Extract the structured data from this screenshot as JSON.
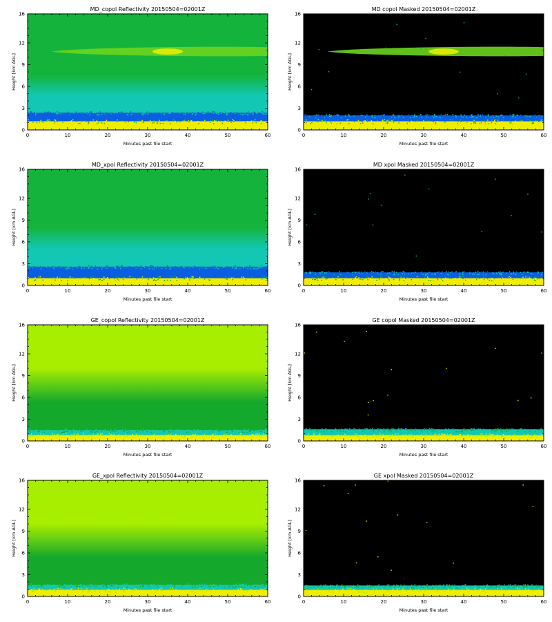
{
  "figure": {
    "panels": [
      {
        "id": "md-copol-reflectivity",
        "title": "MD_copol Reflectivity 20150504=02001Z",
        "xlabel": "Minutes past file start",
        "ylabel": "Height [km AGL]",
        "colors": {
          "low": "#0a5fe0",
          "mid": "#12c8b4",
          "high": "#12b43c",
          "surface": "#f0ee00",
          "background": "#14b43c"
        }
      },
      {
        "id": "md-copol-masked",
        "title": "MD copol Masked 20150504=02001Z",
        "xlabel": "Minutes past file start",
        "ylabel": "Height [km AGL]",
        "colors": {
          "low": "#0a5fe0",
          "mid": "#12c8b4",
          "high": "#12b43c",
          "surface": "#f0ee00",
          "background": "#000000"
        }
      },
      {
        "id": "md-xpol-reflectivity",
        "title": "MD_xpol Reflectivity 20150504=02001Z",
        "xlabel": "Minutes past file start",
        "ylabel": "Height [km AGL]",
        "colors": {
          "low": "#0a5fe0",
          "mid": "#12c8b4",
          "high": "#12b43c",
          "surface": "#f0ee00",
          "background": "#14b43c"
        }
      },
      {
        "id": "md-xpol-masked",
        "title": "MD xpol Masked 20150504=02001Z",
        "xlabel": "Minutes past file start",
        "ylabel": "Height [km AGL]",
        "colors": {
          "low": "#0a5fe0",
          "mid": "#12c8b4",
          "high": "#12b43c",
          "surface": "#f0ee00",
          "background": "#000000"
        }
      },
      {
        "id": "ge-copol-reflectivity",
        "title": "GE_copol Reflectivity 20150504=02001Z",
        "xlabel": "Minutes past file start",
        "ylabel": "Height [km AGL]",
        "colors": {
          "low": "#12c8b4",
          "mid": "#14a82c",
          "high": "#a8ee00",
          "surface": "#f0ee00",
          "background": "#a8ee00"
        }
      },
      {
        "id": "ge-copol-masked",
        "title": "GE copol Masked 20150504=02001Z",
        "xlabel": "Minutes past file start",
        "ylabel": "Height [km AGL]",
        "colors": {
          "low": "#12c8b4",
          "mid": "#14a82c",
          "high": "#a8ee00",
          "surface": "#f0ee00",
          "background": "#000000"
        }
      },
      {
        "id": "ge-xpol-reflectivity",
        "title": "GE_xpol Reflectivity 20150504=02001Z",
        "xlabel": "Minutes past file start",
        "ylabel": "Height [km AGL]",
        "colors": {
          "low": "#12c8b4",
          "mid": "#14a82c",
          "high": "#a8ee00",
          "surface": "#f0ee00",
          "background": "#a8ee00"
        }
      },
      {
        "id": "ge-xpol-masked",
        "title": "GE xpol Masked 20150504=02001Z",
        "xlabel": "Minutes past file start",
        "ylabel": "Height [km AGL]",
        "colors": {
          "low": "#12c8b4",
          "mid": "#14a82c",
          "high": "#a8ee00",
          "surface": "#f0ee00",
          "background": "#000000"
        }
      }
    ]
  },
  "chart_data": [
    {
      "type": "heatmap",
      "title": "MD_copol Reflectivity 20150504=02001Z",
      "xlabel": "Minutes past file start",
      "ylabel": "Height [km AGL]",
      "xlim": [
        0,
        60
      ],
      "ylim": [
        0,
        16
      ],
      "xticks": [
        0,
        10,
        20,
        30,
        40,
        50,
        60
      ],
      "yticks": [
        0,
        3,
        6,
        9,
        12,
        16
      ],
      "masked": false,
      "layers": [
        {
          "kind": "surface",
          "y_range": [
            0,
            1.2
          ]
        },
        {
          "kind": "low",
          "y_range": [
            1.2,
            2.4
          ]
        },
        {
          "kind": "mid",
          "y_range": [
            2.4,
            7.5
          ]
        },
        {
          "kind": "background",
          "y_range": [
            7.5,
            16
          ]
        },
        {
          "kind": "cloud",
          "x_range": [
            6,
            60
          ],
          "y_range": [
            10.2,
            11.4
          ],
          "peak_x": 35
        }
      ]
    },
    {
      "type": "heatmap",
      "title": "MD copol Masked 20150504=02001Z",
      "xlabel": "Minutes past file start",
      "ylabel": "Height [km AGL]",
      "xlim": [
        0,
        60
      ],
      "ylim": [
        0,
        16
      ],
      "xticks": [
        0,
        10,
        20,
        30,
        40,
        50,
        60
      ],
      "yticks": [
        0,
        3,
        6,
        9,
        12,
        16
      ],
      "masked": true,
      "layers": [
        {
          "kind": "surface",
          "y_range": [
            0,
            1.2
          ]
        },
        {
          "kind": "low",
          "y_range": [
            1.2,
            2.0
          ]
        },
        {
          "kind": "cloud",
          "x_range": [
            6,
            60
          ],
          "y_range": [
            10.2,
            11.4
          ],
          "peak_x": 35
        }
      ]
    },
    {
      "type": "heatmap",
      "title": "MD_xpol Reflectivity 20150504=02001Z",
      "xlabel": "Minutes past file start",
      "ylabel": "Height [km AGL]",
      "xlim": [
        0,
        60
      ],
      "ylim": [
        0,
        16
      ],
      "xticks": [
        0,
        10,
        20,
        30,
        40,
        50,
        60
      ],
      "yticks": [
        0,
        3,
        6,
        9,
        12,
        16
      ],
      "masked": false,
      "layers": [
        {
          "kind": "surface",
          "y_range": [
            0,
            1.0
          ]
        },
        {
          "kind": "low",
          "y_range": [
            1.0,
            2.6
          ]
        },
        {
          "kind": "mid",
          "y_range": [
            2.6,
            8.0
          ]
        },
        {
          "kind": "background",
          "y_range": [
            8.0,
            16
          ]
        }
      ]
    },
    {
      "type": "heatmap",
      "title": "MD xpol Masked 20150504=02001Z",
      "xlabel": "Minutes past file start",
      "ylabel": "Height [km AGL]",
      "xlim": [
        0,
        60
      ],
      "ylim": [
        0,
        16
      ],
      "xticks": [
        0,
        10,
        20,
        30,
        40,
        50,
        60
      ],
      "yticks": [
        0,
        3,
        6,
        9,
        12,
        16
      ],
      "masked": true,
      "layers": [
        {
          "kind": "surface",
          "y_range": [
            0,
            1.0
          ]
        },
        {
          "kind": "low",
          "y_range": [
            1.0,
            1.8
          ]
        }
      ]
    },
    {
      "type": "heatmap",
      "title": "GE_copol Reflectivity 20150504=02001Z",
      "xlabel": "Minutes past file start",
      "ylabel": "Height [km AGL]",
      "xlim": [
        0,
        60
      ],
      "ylim": [
        0,
        16
      ],
      "xticks": [
        0,
        10,
        20,
        30,
        40,
        50,
        60
      ],
      "yticks": [
        0,
        3,
        6,
        9,
        12,
        16
      ],
      "masked": false,
      "layers": [
        {
          "kind": "surface",
          "y_range": [
            0,
            0.8
          ]
        },
        {
          "kind": "low",
          "y_range": [
            0.8,
            1.5
          ]
        },
        {
          "kind": "mid",
          "y_range": [
            1.5,
            10.0
          ]
        },
        {
          "kind": "background",
          "y_range": [
            10.0,
            16
          ]
        }
      ]
    },
    {
      "type": "heatmap",
      "title": "GE copol Masked 20150504=02001Z",
      "xlabel": "Minutes past file start",
      "ylabel": "Height [km AGL]",
      "xlim": [
        0,
        60
      ],
      "ylim": [
        0,
        16
      ],
      "xticks": [
        0,
        10,
        20,
        30,
        40,
        50,
        60
      ],
      "yticks": [
        0,
        3,
        6,
        9,
        12,
        16
      ],
      "masked": true,
      "layers": [
        {
          "kind": "surface",
          "y_range": [
            0,
            0.8
          ]
        },
        {
          "kind": "low",
          "y_range": [
            0.8,
            1.6
          ]
        }
      ]
    },
    {
      "type": "heatmap",
      "title": "GE_xpol Reflectivity 20150504=02001Z",
      "xlabel": "Minutes past file start",
      "ylabel": "Height [km AGL]",
      "xlim": [
        0,
        60
      ],
      "ylim": [
        0,
        16
      ],
      "xticks": [
        0,
        10,
        20,
        30,
        40,
        50,
        60
      ],
      "yticks": [
        0,
        3,
        6,
        9,
        12,
        16
      ],
      "masked": false,
      "layers": [
        {
          "kind": "surface",
          "y_range": [
            0,
            0.9
          ]
        },
        {
          "kind": "low",
          "y_range": [
            0.9,
            1.6
          ]
        },
        {
          "kind": "mid",
          "y_range": [
            1.6,
            10.0
          ]
        },
        {
          "kind": "background",
          "y_range": [
            10.0,
            16
          ]
        }
      ]
    },
    {
      "type": "heatmap",
      "title": "GE xpol Masked 20150504=02001Z",
      "xlabel": "Minutes past file start",
      "ylabel": "Height [km AGL]",
      "xlim": [
        0,
        60
      ],
      "ylim": [
        0,
        16
      ],
      "xticks": [
        0,
        10,
        20,
        30,
        40,
        50,
        60
      ],
      "yticks": [
        0,
        3,
        6,
        9,
        12,
        16
      ],
      "masked": true,
      "layers": [
        {
          "kind": "surface",
          "y_range": [
            0,
            0.9
          ]
        },
        {
          "kind": "low",
          "y_range": [
            0.9,
            1.5
          ]
        }
      ]
    }
  ]
}
